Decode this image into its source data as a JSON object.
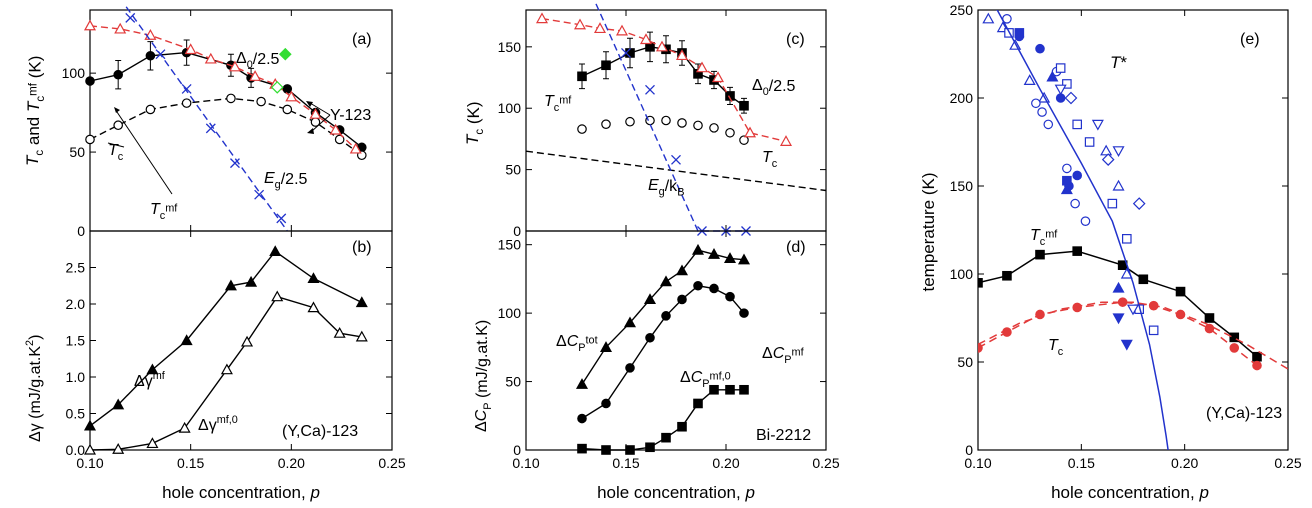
{
  "chart_data": [
    {
      "panel": "a",
      "type": "line",
      "panel_label": "(a)",
      "xlim": [
        0.1,
        0.25
      ],
      "ylim": [
        0,
        140
      ],
      "yticks": [
        0,
        50,
        100
      ],
      "ylabel_parts": [
        "T",
        "c",
        " and ",
        "T",
        "c",
        "mf",
        " (K)"
      ],
      "annotations": {
        "delta0": "Δ0/2.5",
        "y123": "Y-123",
        "tc": "Tc",
        "tcmf": "Tcmf",
        "eg": "Eg/2.5"
      },
      "series": [
        {
          "name": "Tcmf",
          "marker": "filled-circle",
          "color": "#000000",
          "line": "solid",
          "errorbars": true,
          "x": [
            0.1,
            0.114,
            0.13,
            0.148,
            0.17,
            0.18,
            0.198,
            0.212,
            0.224,
            0.235
          ],
          "y": [
            95,
            99,
            111,
            113,
            105,
            97,
            90,
            75,
            64,
            53
          ],
          "err": [
            0,
            9,
            9,
            8,
            7,
            6,
            0,
            0,
            0,
            0
          ]
        },
        {
          "name": "Tc",
          "marker": "open-circle",
          "color": "#000000",
          "line": "dashed",
          "x": [
            0.1,
            0.114,
            0.13,
            0.148,
            0.17,
            0.185,
            0.198,
            0.212,
            0.224,
            0.235
          ],
          "y": [
            58,
            67,
            77,
            81,
            84,
            82,
            77,
            69,
            58,
            48
          ]
        },
        {
          "name": "Δ0/2.5",
          "marker": "open-triangle",
          "color": "#e23a3a",
          "line": "dashed",
          "x": [
            0.1,
            0.115,
            0.13,
            0.15,
            0.16,
            0.172,
            0.182,
            0.192,
            0.2,
            0.212,
            0.222,
            0.232
          ],
          "y": [
            130,
            128,
            124,
            115,
            109,
            104,
            98,
            93,
            85,
            74,
            64,
            52
          ]
        },
        {
          "name": "Eg/2.5",
          "marker": "x",
          "color": "#2233cc",
          "line": "dashed",
          "x": [
            0.12,
            0.135,
            0.148,
            0.16,
            0.172,
            0.184,
            0.195
          ],
          "y": [
            135,
            112,
            90,
            65,
            43,
            23,
            8
          ],
          "line_x": [
            0.118,
            0.198
          ],
          "line_y": [
            142,
            0
          ]
        },
        {
          "name": "Y-123",
          "marker": "filled-diamond",
          "color": "#33dd33",
          "x": [
            0.197
          ],
          "y": [
            112
          ]
        },
        {
          "name": "Y-123 Tc",
          "marker": "open-diamond",
          "color": "#33dd33",
          "x": [
            0.193
          ],
          "y": [
            91
          ]
        }
      ]
    },
    {
      "panel": "b",
      "type": "line",
      "panel_label": "(b)",
      "xlim": [
        0.1,
        0.25
      ],
      "ylim": [
        0,
        3.0
      ],
      "yticks": [
        0.0,
        0.5,
        1.0,
        1.5,
        2.0,
        2.5
      ],
      "xticks": [
        0.1,
        0.15,
        0.2,
        0.25
      ],
      "xlabel": "hole concentration, p",
      "ylabel": "Δγ  (mJ/g.at.K²)",
      "annotations": {
        "gmf": "Δγmf",
        "gmf0": "Δγmf,0",
        "compound": "(Y,Ca)-123"
      },
      "series": [
        {
          "name": "Δγmf",
          "marker": "filled-triangle",
          "color": "#000000",
          "line": "solid",
          "x": [
            0.1,
            0.114,
            0.131,
            0.148,
            0.17,
            0.18,
            0.192,
            0.211,
            0.235
          ],
          "y": [
            0.33,
            0.62,
            1.1,
            1.5,
            2.25,
            2.3,
            2.72,
            2.35,
            2.02
          ]
        },
        {
          "name": "Δγmf,0",
          "marker": "open-triangle",
          "color": "#000000",
          "line": "solid",
          "x": [
            0.1,
            0.114,
            0.131,
            0.147,
            0.168,
            0.178,
            0.193,
            0.211,
            0.224,
            0.235
          ],
          "y": [
            0.0,
            0.01,
            0.09,
            0.3,
            1.1,
            1.48,
            2.1,
            1.95,
            1.6,
            1.55
          ]
        }
      ]
    },
    {
      "panel": "c",
      "type": "line",
      "panel_label": "(c)",
      "xlim": [
        0.1,
        0.25
      ],
      "ylim": [
        0,
        180
      ],
      "yticks": [
        0,
        50,
        100,
        150
      ],
      "ylabel": "Tc (K)",
      "annotations": {
        "tcmf": "Tcmf",
        "delta0": "Δ0/2.5",
        "tc": "Tc",
        "eg": "Eg/kB"
      },
      "series": [
        {
          "name": "Tcmf",
          "marker": "filled-square",
          "color": "#000000",
          "line": "solid",
          "errorbars": true,
          "x": [
            0.128,
            0.14,
            0.152,
            0.162,
            0.17,
            0.178,
            0.186,
            0.194,
            0.202,
            0.209
          ],
          "y": [
            126,
            135,
            145,
            150,
            148,
            145,
            128,
            123,
            110,
            102
          ],
          "err": [
            10,
            11,
            12,
            12,
            11,
            10,
            8,
            7,
            7,
            6
          ]
        },
        {
          "name": "Tc",
          "marker": "open-circle",
          "color": "#000000",
          "line": "dashed",
          "x": [
            0.128,
            0.14,
            0.152,
            0.162,
            0.17,
            0.178,
            0.186,
            0.194,
            0.202,
            0.209
          ],
          "y": [
            83,
            87,
            89,
            90,
            90,
            88,
            86,
            84,
            80,
            74
          ],
          "line_x": [
            0.1,
            0.25
          ],
          "line_y": [
            65,
            33
          ]
        },
        {
          "name": "Δ0/2.5",
          "marker": "open-triangle",
          "color": "#e23a3a",
          "line": "dashed",
          "x": [
            0.108,
            0.127,
            0.137,
            0.148,
            0.16,
            0.168,
            0.178,
            0.188,
            0.196,
            0.212,
            0.23
          ],
          "y": [
            173,
            168,
            165,
            163,
            156,
            150,
            143,
            133,
            125,
            80,
            73
          ]
        },
        {
          "name": "Eg/kB",
          "marker": "x",
          "color": "#2233cc",
          "line": "dashed",
          "x": [
            0.15,
            0.162,
            0.175,
            0.188,
            0.2,
            0.21
          ],
          "y": [
            145,
            115,
            58,
            0,
            0,
            0
          ],
          "line_x": [
            0.135,
            0.186,
            0.21
          ],
          "line_y": [
            185,
            0,
            0
          ]
        }
      ]
    },
    {
      "panel": "d",
      "type": "line",
      "panel_label": "(d)",
      "xlim": [
        0.1,
        0.25
      ],
      "ylim": [
        0,
        160
      ],
      "yticks": [
        0,
        50,
        100,
        150
      ],
      "xticks": [
        0.1,
        0.15,
        0.2,
        0.25
      ],
      "xlabel": "hole concentration, p",
      "ylabel": "ΔCP  (mJ/g.at.K)",
      "annotations": {
        "tot": "ΔCPtot",
        "mf": "ΔCPmf",
        "mf0": "ΔCPmf,0",
        "compound": "Bi-2212"
      },
      "series": [
        {
          "name": "ΔCPtot",
          "marker": "filled-triangle",
          "color": "#000000",
          "line": "solid",
          "x": [
            0.128,
            0.14,
            0.152,
            0.162,
            0.17,
            0.178,
            0.186,
            0.194,
            0.202,
            0.209
          ],
          "y": [
            48,
            75,
            93,
            110,
            123,
            131,
            146,
            143,
            140,
            139
          ]
        },
        {
          "name": "ΔCPmf",
          "marker": "filled-circle",
          "color": "#000000",
          "line": "solid",
          "x": [
            0.128,
            0.14,
            0.152,
            0.162,
            0.17,
            0.178,
            0.186,
            0.194,
            0.202,
            0.209
          ],
          "y": [
            23,
            34,
            60,
            82,
            98,
            110,
            120,
            118,
            112,
            100
          ]
        },
        {
          "name": "ΔCPmf,0",
          "marker": "filled-square",
          "color": "#000000",
          "line": "solid",
          "x": [
            0.128,
            0.14,
            0.152,
            0.162,
            0.17,
            0.178,
            0.186,
            0.194,
            0.202,
            0.209
          ],
          "y": [
            1,
            0,
            0,
            2,
            9,
            17,
            34,
            44,
            44,
            44
          ]
        }
      ]
    },
    {
      "panel": "e",
      "type": "scatter",
      "panel_label": "(e)",
      "xlim": [
        0.1,
        0.25
      ],
      "ylim": [
        0,
        250
      ],
      "xticks": [
        0.1,
        0.15,
        0.2,
        0.25
      ],
      "yticks": [
        0,
        50,
        100,
        150,
        200,
        250
      ],
      "xlabel": "hole concentration, p",
      "ylabel": "temperature  (K)",
      "annotations": {
        "tstar": "T*",
        "tcmf": "Tcmf",
        "tc": "Tc",
        "compound": "(Y,Ca)-123"
      },
      "series": [
        {
          "name": "Tcmf",
          "marker": "filled-square",
          "color": "#000000",
          "line": "solid",
          "x": [
            0.1,
            0.114,
            0.13,
            0.148,
            0.17,
            0.18,
            0.198,
            0.212,
            0.224,
            0.235
          ],
          "y": [
            95,
            99,
            111,
            113,
            105,
            97,
            90,
            75,
            64,
            53
          ]
        },
        {
          "name": "Tc",
          "marker": "filled-circle",
          "color": "#e23a3a",
          "line": "dashed",
          "x": [
            0.1,
            0.114,
            0.13,
            0.148,
            0.17,
            0.185,
            0.198,
            0.212,
            0.224,
            0.235
          ],
          "y": [
            58,
            67,
            77,
            81,
            84,
            82,
            77,
            69,
            58,
            48
          ]
        },
        {
          "name": "T* open triangles",
          "marker": "open-triangle",
          "color": "#2233cc",
          "x": [
            0.105,
            0.112,
            0.118,
            0.125,
            0.132,
            0.162,
            0.168,
            0.172
          ],
          "y": [
            245,
            240,
            230,
            210,
            200,
            170,
            150,
            100
          ]
        },
        {
          "name": "T* open circles",
          "marker": "open-circle",
          "color": "#2233cc",
          "x": [
            0.114,
            0.128,
            0.131,
            0.134,
            0.138,
            0.143,
            0.147,
            0.152
          ],
          "y": [
            245,
            197,
            192,
            185,
            215,
            160,
            140,
            130
          ]
        },
        {
          "name": "T* open squares",
          "marker": "open-square",
          "color": "#2233cc",
          "x": [
            0.115,
            0.14,
            0.143,
            0.148,
            0.154,
            0.165,
            0.172,
            0.178,
            0.185
          ],
          "y": [
            237,
            217,
            208,
            185,
            175,
            140,
            120,
            80,
            68
          ]
        },
        {
          "name": "T* open down-triangles",
          "marker": "open-down-triangle",
          "color": "#2233cc",
          "x": [
            0.14,
            0.158,
            0.168,
            0.175
          ],
          "y": [
            205,
            185,
            170,
            80
          ]
        },
        {
          "name": "T* open diamonds",
          "marker": "open-diamond",
          "color": "#2233cc",
          "x": [
            0.145,
            0.163,
            0.178
          ],
          "y": [
            200,
            165,
            140
          ]
        },
        {
          "name": "T* filled",
          "marker": "filled-circle",
          "color": "#2233cc",
          "x": [
            0.12,
            0.13,
            0.14,
            0.144,
            0.148
          ],
          "y": [
            235,
            228,
            200,
            150,
            156
          ]
        },
        {
          "name": "T* filled squares",
          "marker": "filled-square",
          "color": "#2233cc",
          "x": [
            0.12,
            0.143
          ],
          "y": [
            237,
            153
          ]
        },
        {
          "name": "T* filled triangles",
          "marker": "filled-triangle",
          "color": "#2233cc",
          "x": [
            0.136,
            0.143,
            0.168
          ],
          "y": [
            212,
            148,
            92
          ]
        },
        {
          "name": "T* filled down-triangles",
          "marker": "filled-down-triangle",
          "color": "#2233cc",
          "x": [
            0.168,
            0.172
          ],
          "y": [
            75,
            60
          ]
        },
        {
          "name": "T* fit",
          "marker": "none",
          "color": "#2233cc",
          "line": "solid",
          "line_x": [
            0.107,
            0.13,
            0.15,
            0.165,
            0.175,
            0.183,
            0.188,
            0.191,
            0.192
          ],
          "line_y": [
            255,
            205,
            163,
            130,
            95,
            60,
            30,
            8,
            0
          ]
        },
        {
          "name": "Tc fit",
          "marker": "none",
          "color": "#e23a3a",
          "line": "dashed",
          "line_x": [
            0.1,
            0.12,
            0.14,
            0.16,
            0.175,
            0.19,
            0.21,
            0.23,
            0.25
          ],
          "line_y": [
            60,
            72,
            80,
            84,
            84,
            81,
            72,
            60,
            46
          ]
        }
      ]
    }
  ]
}
